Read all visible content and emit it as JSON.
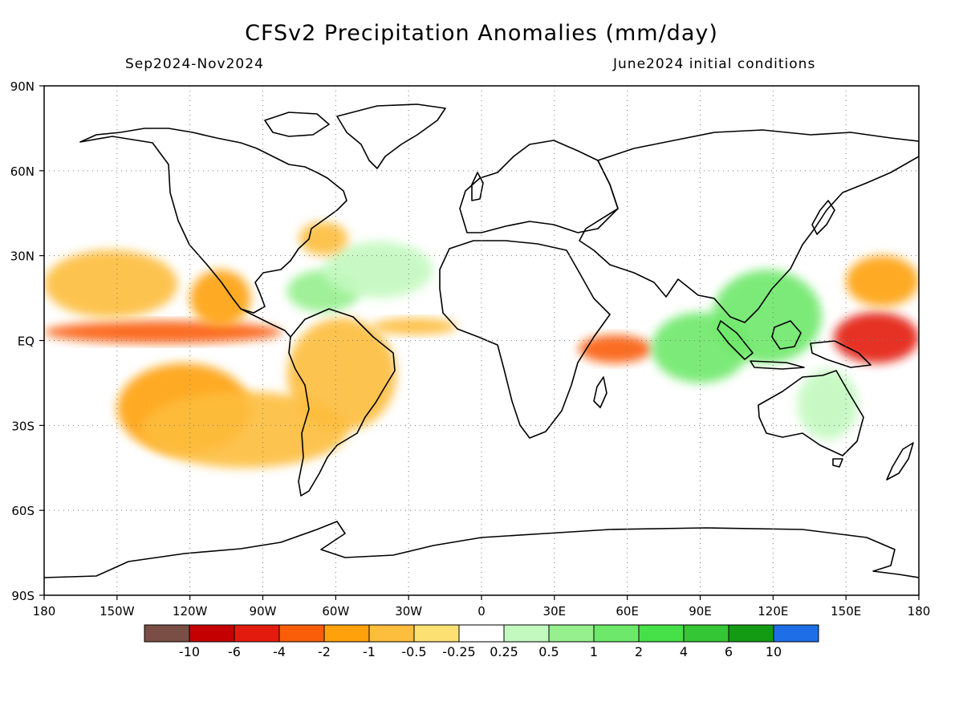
{
  "title": "CFSv2 Precipitation Anomalies (mm/day)",
  "period": "Sep2024-Nov2024",
  "initial_conditions": "June2024 initial conditions",
  "map": {
    "projection": "equirectangular",
    "lon_range": [
      -180,
      180
    ],
    "lat_range": [
      -90,
      90
    ],
    "grid": "dotted",
    "lat_ticks": [
      {
        "value": 90,
        "label": "90N"
      },
      {
        "value": 60,
        "label": "60N"
      },
      {
        "value": 30,
        "label": "30N"
      },
      {
        "value": 0,
        "label": "EQ"
      },
      {
        "value": -30,
        "label": "30S"
      },
      {
        "value": -60,
        "label": "60S"
      },
      {
        "value": -90,
        "label": "90S"
      }
    ],
    "lon_ticks": [
      {
        "value": -180,
        "label": "180"
      },
      {
        "value": -150,
        "label": "150W"
      },
      {
        "value": -120,
        "label": "120W"
      },
      {
        "value": -90,
        "label": "90W"
      },
      {
        "value": -60,
        "label": "60W"
      },
      {
        "value": -30,
        "label": "30W"
      },
      {
        "value": 0,
        "label": "0"
      },
      {
        "value": 30,
        "label": "30E"
      },
      {
        "value": 60,
        "label": "60E"
      },
      {
        "value": 90,
        "label": "90E"
      },
      {
        "value": 120,
        "label": "120E"
      },
      {
        "value": 150,
        "label": "150E"
      },
      {
        "value": 180,
        "label": "180"
      }
    ],
    "anomaly_regions": [
      {
        "name": "equatorial-central-pacific-dry",
        "bin": 3,
        "lon": [
          -180,
          -82
        ],
        "lat": [
          -1,
          7
        ]
      },
      {
        "name": "north-pacific-dry",
        "bin": 5,
        "lon": [
          -180,
          -125
        ],
        "lat": [
          8,
          32
        ]
      },
      {
        "name": "south-pacific-dry",
        "bin": 4,
        "lon": [
          -150,
          -95
        ],
        "lat": [
          -40,
          -8
        ]
      },
      {
        "name": "south-pacific-dry-band",
        "bin": 5,
        "lon": [
          -140,
          -55
        ],
        "lat": [
          -45,
          -18
        ]
      },
      {
        "name": "east-pacific-dry",
        "bin": 4,
        "lon": [
          -120,
          -95
        ],
        "lat": [
          5,
          25
        ]
      },
      {
        "name": "amazon-dry",
        "bin": 5,
        "lon": [
          -80,
          -35
        ],
        "lat": [
          -32,
          8
        ]
      },
      {
        "name": "atlantic-itcz-dry",
        "bin": 5,
        "lon": [
          -45,
          -10
        ],
        "lat": [
          2,
          8
        ]
      },
      {
        "name": "caribbean-wet",
        "bin": 9,
        "lon": [
          -80,
          -50
        ],
        "lat": [
          10,
          25
        ]
      },
      {
        "name": "north-atlantic-wet",
        "bin": 8,
        "lon": [
          -65,
          -20
        ],
        "lat": [
          15,
          35
        ]
      },
      {
        "name": "gulf-stream-dry",
        "bin": 5,
        "lon": [
          -75,
          -55
        ],
        "lat": [
          30,
          42
        ]
      },
      {
        "name": "indian-ocean-west-dry",
        "bin": 3,
        "lon": [
          40,
          70
        ],
        "lat": [
          -8,
          2
        ]
      },
      {
        "name": "indian-ocean-east-wet",
        "bin": 10,
        "lon": [
          70,
          110
        ],
        "lat": [
          -15,
          10
        ]
      },
      {
        "name": "maritime-continent-wet",
        "bin": 10,
        "lon": [
          95,
          140
        ],
        "lat": [
          -8,
          25
        ]
      },
      {
        "name": "west-pacific-dry",
        "bin": 2,
        "lon": [
          145,
          180
        ],
        "lat": [
          -8,
          10
        ]
      },
      {
        "name": "northwest-pacific-dry",
        "bin": 4,
        "lon": [
          150,
          180
        ],
        "lat": [
          12,
          30
        ]
      },
      {
        "name": "australia-east-wet",
        "bin": 8,
        "lon": [
          130,
          155
        ],
        "lat": [
          -35,
          -10
        ]
      },
      {
        "name": "southern-ocean-wet",
        "bin": 7,
        "lon": [
          -180,
          180
        ],
        "lat": [
          -70,
          -55
        ]
      },
      {
        "name": "arctic-wet",
        "bin": 7,
        "lon": [
          -180,
          180
        ],
        "lat": [
          75,
          85
        ]
      }
    ]
  },
  "colorbar": {
    "labels": [
      "-10",
      "-6",
      "-4",
      "-2",
      "-1",
      "-0.5",
      "-0.25",
      "0.25",
      "0.5",
      "1",
      "2",
      "4",
      "6",
      "10"
    ],
    "colors": [
      "#7a4e45",
      "#c50000",
      "#e31b0e",
      "#fa5e08",
      "#fea10a",
      "#fdbd3d",
      "#fde072",
      "#ffffff",
      "#c3f9bf",
      "#95ef8d",
      "#6ee86a",
      "#46e048",
      "#34c634",
      "#149b14",
      "#1e6ee8"
    ]
  }
}
